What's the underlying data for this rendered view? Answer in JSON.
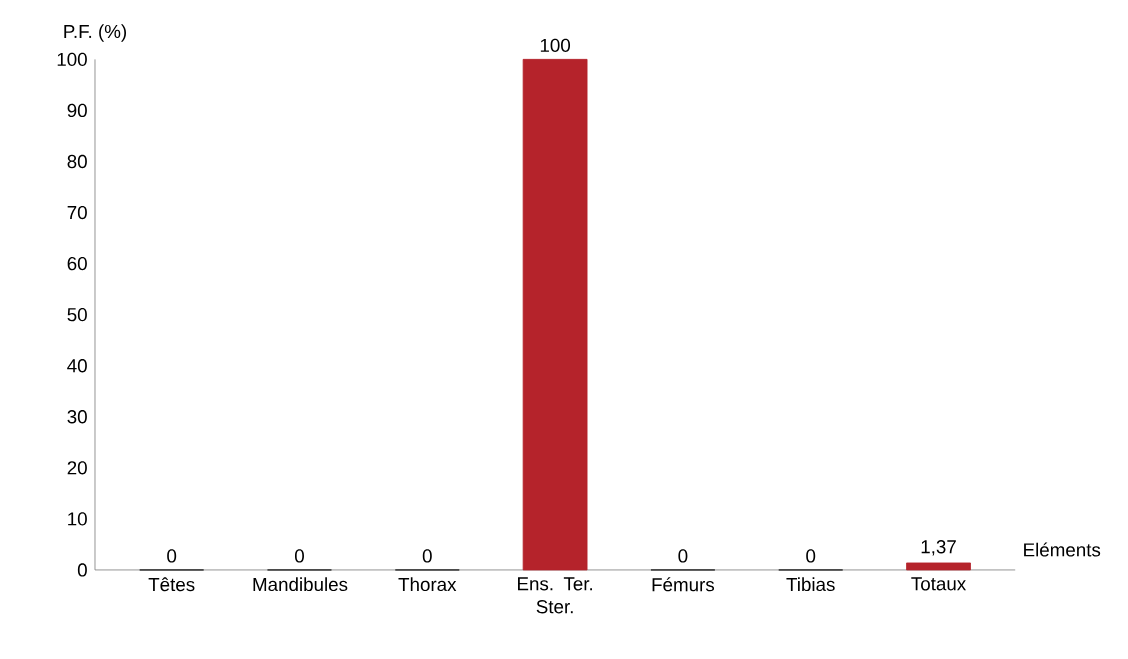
{
  "chart_data": {
    "type": "bar",
    "ylabel": "P.F. (%)",
    "xlabel": "Eléments",
    "categories": [
      "Têtes",
      "Mandibules",
      "Thorax",
      "Ens. Ter. Ster.",
      "Fémurs",
      "Tibias",
      "Totaux"
    ],
    "values": [
      0,
      0,
      0,
      100,
      0,
      0,
      1.37
    ],
    "value_labels": [
      "0",
      "0",
      "0",
      "100",
      "0",
      "0",
      "1,37"
    ],
    "colors": [
      "#1a1a1a",
      "#1a1a1a",
      "#1a1a1a",
      "#b5232b",
      "#1a1a1a",
      "#1a1a1a",
      "#b5232b"
    ],
    "ylim": [
      0,
      100
    ],
    "yticks": [
      0,
      10,
      20,
      30,
      40,
      50,
      60,
      70,
      80,
      90,
      100
    ],
    "grid": false
  }
}
